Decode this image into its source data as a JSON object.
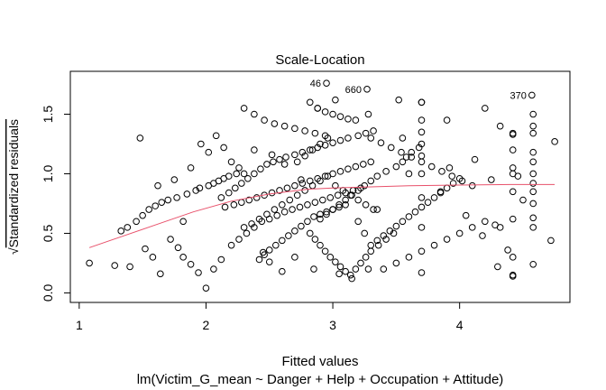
{
  "chart_data": {
    "type": "scatter",
    "title": "Scale-Location",
    "xlabel": "Fitted values",
    "sublabel": "lm(Victim_G_mean ~ Danger + Help + Occupation + Attitude)",
    "ylabel_root": "√",
    "ylabel_text": "Standardized residuals",
    "xlim": [
      0.93,
      4.87
    ],
    "ylim": [
      -0.08,
      1.86
    ],
    "x_ticks": [
      1,
      2,
      3,
      4
    ],
    "x_tick_labels": [
      "1",
      "2",
      "3",
      "4"
    ],
    "y_ticks": [
      0.0,
      0.5,
      1.0,
      1.5
    ],
    "y_tick_labels": [
      "0.0",
      "0.5",
      "1.0",
      "1.5"
    ],
    "grid": false,
    "point_color": "#000000",
    "smooth_color": "#e8516b",
    "smoother": {
      "x": [
        1.08,
        1.3,
        1.6,
        1.9,
        2.2,
        2.5,
        2.8,
        3.0,
        3.3,
        3.6,
        4.0,
        4.4,
        4.75
      ],
      "y": [
        0.38,
        0.46,
        0.57,
        0.68,
        0.77,
        0.83,
        0.87,
        0.88,
        0.89,
        0.9,
        0.905,
        0.91,
        0.91
      ]
    },
    "labeled_points": [
      {
        "label": "46",
        "x": 2.95,
        "y": 1.76
      },
      {
        "label": "660",
        "x": 3.27,
        "y": 1.71
      },
      {
        "label": "370",
        "x": 4.57,
        "y": 1.66
      }
    ],
    "points": {
      "x": [
        1.08,
        1.28,
        1.33,
        1.38,
        1.45,
        1.5,
        1.55,
        1.6,
        1.65,
        1.7,
        1.77,
        1.85,
        1.92,
        1.95,
        2.02,
        2.06,
        2.1,
        2.14,
        2.18,
        2.24,
        1.4,
        1.48,
        1.52,
        1.58,
        1.64,
        1.72,
        1.78,
        1.82,
        1.88,
        1.94,
        2.0,
        2.06,
        2.12,
        1.62,
        1.75,
        1.82,
        1.88,
        1.96,
        2.02,
        2.08,
        2.14,
        2.2,
        2.26,
        2.3,
        2.12,
        2.18,
        2.23,
        2.28,
        2.33,
        2.38,
        2.43,
        2.48,
        2.53,
        2.58,
        2.63,
        2.7,
        2.76,
        2.82,
        2.88,
        2.94,
        3.0,
        3.06,
        3.12,
        3.2,
        3.26,
        3.32,
        2.15,
        2.22,
        2.28,
        2.34,
        2.4,
        2.46,
        2.52,
        2.58,
        2.64,
        2.7,
        2.76,
        2.82,
        2.88,
        2.94,
        3.0,
        3.06,
        3.12,
        3.18,
        3.24,
        3.3,
        2.2,
        2.26,
        2.32,
        2.38,
        2.44,
        2.5,
        2.56,
        2.62,
        2.68,
        2.74,
        2.8,
        2.86,
        2.92,
        2.98,
        3.04,
        3.1,
        3.16,
        3.22,
        2.3,
        2.36,
        2.42,
        2.48,
        2.54,
        2.6,
        2.66,
        2.72,
        2.78,
        2.84,
        2.9,
        2.96,
        3.02,
        3.08,
        3.14,
        3.2,
        3.26,
        3.32,
        2.82,
        2.86,
        2.9,
        2.94,
        2.98,
        3.02,
        3.06,
        3.1,
        3.14,
        3.18,
        3.22,
        3.26,
        3.3,
        3.36,
        3.42,
        3.48,
        2.3,
        2.38,
        2.46,
        2.54,
        2.62,
        2.7,
        2.78,
        2.86,
        2.94,
        2.72,
        2.78,
        2.84,
        2.9,
        2.96,
        2.82,
        2.88,
        2.94,
        3.0,
        3.06,
        3.12,
        2.9,
        2.95,
        3.0,
        3.05,
        3.1,
        3.15,
        3.2,
        3.25,
        3.3,
        3.35,
        3.42,
        3.5,
        3.55,
        3.58,
        3.62,
        3.68,
        2.42,
        2.46,
        2.5,
        2.55,
        2.6,
        2.65,
        2.7,
        2.75,
        2.8,
        2.85,
        2.9,
        2.95,
        3.0,
        3.05,
        3.1,
        3.3,
        3.35,
        3.4,
        3.45,
        3.5,
        3.55,
        3.6,
        3.65,
        3.7,
        3.75,
        3.8,
        3.85,
        3.9,
        3.95,
        4.0,
        3.3,
        3.38,
        3.46,
        3.54,
        3.62,
        3.7,
        3.78,
        3.86,
        3.94,
        4.02,
        4.1,
        3.4,
        3.5,
        3.6,
        3.7,
        3.8,
        3.9,
        4.0,
        4.1,
        4.2,
        3.7,
        3.7,
        3.7,
        3.7,
        3.7,
        3.7,
        3.7,
        3.7,
        3.7,
        3.55,
        3.6,
        3.85,
        3.92,
        4.05,
        4.12,
        4.18,
        4.25,
        4.32,
        4.42,
        4.42,
        4.42,
        4.42,
        4.42,
        4.42,
        4.42,
        4.42,
        4.42,
        4.58,
        4.58,
        4.58,
        4.58,
        4.58,
        4.58,
        4.58,
        4.58,
        4.58,
        4.58,
        4.58,
        4.75,
        4.72,
        4.28,
        4.3,
        4.38,
        4.5,
        4.46,
        2.38,
        2.52,
        2.62,
        2.75,
        3.2,
        3.25,
        2.6,
        2.5,
        2.45,
        2.7,
        2.85,
        3.05,
        3.15,
        3.28,
        3.35,
        2.95,
        3.27,
        4.57,
        2.88,
        3.02,
        3.18,
        3.28,
        3.52,
        3.7,
        3.9,
        4.2,
        4.32,
        4.42,
        4.58
      ],
      "y": [
        0.25,
        0.23,
        0.52,
        0.55,
        0.6,
        0.65,
        0.7,
        0.73,
        0.76,
        0.78,
        0.8,
        0.83,
        0.86,
        0.88,
        0.9,
        0.92,
        0.94,
        0.96,
        0.98,
        1.0,
        0.22,
        1.3,
        0.37,
        0.3,
        0.16,
        0.45,
        0.38,
        0.3,
        0.24,
        0.17,
        0.04,
        0.2,
        0.28,
        0.9,
        0.95,
        0.6,
        1.05,
        1.25,
        1.18,
        1.32,
        1.22,
        1.1,
        1.05,
        1.0,
        0.8,
        0.84,
        0.88,
        0.92,
        0.96,
        1.0,
        1.04,
        1.08,
        1.1,
        1.12,
        1.14,
        1.16,
        1.18,
        1.2,
        1.22,
        1.24,
        1.26,
        1.28,
        1.3,
        1.32,
        1.34,
        1.36,
        0.72,
        0.74,
        0.76,
        0.78,
        0.8,
        0.82,
        0.84,
        0.86,
        0.88,
        0.9,
        0.92,
        0.94,
        0.96,
        0.98,
        1.0,
        1.02,
        1.04,
        1.06,
        1.08,
        1.1,
        0.4,
        0.45,
        0.5,
        0.55,
        0.6,
        0.62,
        0.65,
        0.68,
        0.7,
        0.72,
        0.74,
        0.76,
        0.78,
        0.8,
        0.82,
        0.84,
        0.86,
        0.88,
        0.55,
        0.58,
        0.62,
        0.66,
        0.7,
        0.74,
        0.78,
        0.82,
        0.86,
        0.9,
        0.94,
        0.98,
        0.9,
        0.86,
        0.82,
        0.78,
        0.74,
        0.7,
        0.5,
        0.45,
        0.4,
        0.35,
        0.3,
        0.26,
        0.22,
        0.18,
        0.15,
        0.2,
        0.25,
        0.3,
        0.35,
        0.4,
        0.45,
        0.5,
        1.55,
        1.5,
        1.45,
        1.42,
        1.4,
        1.38,
        1.36,
        1.34,
        1.32,
        1.1,
        1.15,
        1.2,
        1.25,
        1.3,
        1.6,
        1.55,
        1.52,
        1.5,
        1.48,
        1.46,
        0.62,
        0.66,
        0.7,
        0.74,
        0.78,
        0.82,
        0.86,
        0.9,
        0.94,
        0.98,
        1.02,
        1.06,
        1.1,
        1.14,
        1.18,
        1.22,
        0.28,
        0.32,
        0.36,
        0.4,
        0.44,
        0.48,
        0.52,
        0.56,
        0.6,
        0.64,
        0.66,
        0.68,
        0.7,
        0.72,
        0.74,
        0.4,
        0.44,
        0.48,
        0.52,
        0.56,
        0.6,
        0.64,
        0.68,
        0.72,
        0.76,
        0.8,
        0.84,
        0.88,
        0.92,
        0.96,
        1.3,
        1.26,
        1.22,
        1.18,
        1.14,
        1.1,
        1.06,
        1.02,
        0.98,
        0.94,
        0.9,
        0.2,
        0.25,
        0.3,
        0.35,
        0.4,
        0.45,
        0.5,
        0.55,
        0.6,
        0.17,
        0.55,
        0.8,
        1.0,
        1.15,
        1.25,
        1.35,
        1.45,
        1.6,
        1.3,
        1.0,
        0.85,
        1.05,
        0.65,
        1.12,
        0.48,
        0.95,
        0.55,
        0.14,
        0.3,
        0.62,
        0.85,
        1.0,
        1.05,
        1.2,
        1.33,
        0.15,
        0.24,
        0.55,
        0.63,
        0.75,
        0.85,
        0.92,
        1.0,
        1.1,
        1.18,
        1.4,
        1.5,
        1.27,
        0.44,
        0.57,
        0.22,
        0.36,
        0.78,
        0.98,
        1.2,
        1.16,
        1.08,
        0.95,
        0.6,
        0.5,
        0.18,
        0.26,
        0.34,
        0.3,
        0.2,
        0.16,
        0.12,
        0.2,
        0.7,
        1.76,
        1.71,
        1.66,
        1.55,
        1.62,
        1.45,
        1.5,
        1.62,
        1.6,
        1.45,
        1.55,
        1.4,
        1.34,
        1.34
      ]
    }
  }
}
